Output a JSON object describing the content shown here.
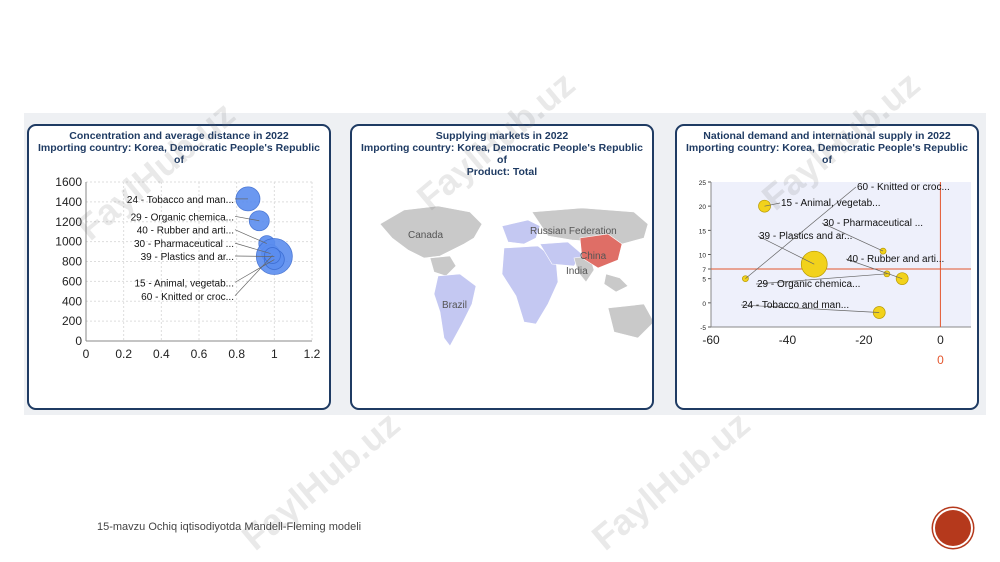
{
  "panels": {
    "concentration": {
      "title_lines": [
        "Concentration and average distance in 2022",
        "Importing country: Korea, Democratic People's Republic",
        "of"
      ],
      "chart_data": {
        "type": "scatter",
        "title": "Concentration and average distance in 2022",
        "xlim": [
          0,
          1.2
        ],
        "ylim": [
          0,
          1600
        ],
        "x_ticks": [
          "0",
          "0.2",
          "0.4",
          "0.6",
          "0.8",
          "1",
          "1.2"
        ],
        "y_ticks": [
          "0",
          "200",
          "400",
          "600",
          "800",
          "1000",
          "1200",
          "1400",
          "1600"
        ],
        "grid": true,
        "bubble_color": "#5b8def",
        "points": [
          {
            "label": "24 - Tobacco and man...",
            "x": 0.86,
            "y": 1430,
            "r": 12
          },
          {
            "label": "29 - Organic chemica...",
            "x": 0.92,
            "y": 1210,
            "r": 10
          },
          {
            "label": "40 - Rubber and arti...",
            "x": 0.96,
            "y": 980,
            "r": 8
          },
          {
            "label": "30 - Pharmaceutical ...",
            "x": 0.98,
            "y": 880,
            "r": 9
          },
          {
            "label": "39 - Plastics and ar...",
            "x": 1.0,
            "y": 850,
            "r": 18
          },
          {
            "label": "15 - Animal, vegetab...",
            "x": 1.0,
            "y": 820,
            "r": 10
          },
          {
            "label": "60 - Knitted or croc...",
            "x": 0.99,
            "y": 860,
            "r": 8
          }
        ],
        "label_y": [
          1430,
          1255,
          1120,
          985,
          855,
          590,
          455
        ]
      }
    },
    "markets": {
      "title_lines": [
        "Supplying markets in 2022",
        "Importing country: Korea, Democratic People's Republic",
        "of",
        "Product: Total"
      ],
      "map_labels": {
        "canada": "Canada",
        "russia": "Russian Federation",
        "china": "China",
        "india": "India",
        "brazil": "Brazil"
      },
      "colors": {
        "land": "#c9c9c9",
        "supplier": "#c4c8f2",
        "china": "#df6e66"
      }
    },
    "demand": {
      "title_lines": [
        "National demand and international supply in 2022",
        "Importing country: Korea, Democratic People's Republic",
        "of"
      ],
      "chart_data": {
        "type": "scatter",
        "title": "National demand and international supply in 2022",
        "xlim": [
          -60,
          8
        ],
        "ylim": [
          -5,
          25
        ],
        "x_ticks": [
          "-60",
          "-40",
          "-20",
          "0"
        ],
        "y_ticks": [
          "-5",
          "0",
          "5",
          "7",
          "10",
          "15",
          "20",
          "25"
        ],
        "reference_lines": {
          "x": 0,
          "y": 7,
          "color": "#e3562e"
        },
        "x_reference_label": "0",
        "bubble_color": "#f2d21b",
        "points": [
          {
            "label": "60 - Knitted or croc...",
            "x": -51,
            "y": 5,
            "r": 3
          },
          {
            "label": "15 - Animal, vegetab...",
            "x": -46,
            "y": 20,
            "r": 6
          },
          {
            "label": "30 - Pharmaceutical ...",
            "x": -15,
            "y": 10.7,
            "r": 3
          },
          {
            "label": "39 - Plastics and ar...",
            "x": -33,
            "y": 8,
            "r": 13
          },
          {
            "label": "40 - Rubber and arti...",
            "x": -10,
            "y": 5,
            "r": 6
          },
          {
            "label": "29 - Organic chemica...",
            "x": -14,
            "y": 6,
            "r": 3
          },
          {
            "label": "24 - Tobacco and man...",
            "x": -16,
            "y": -2,
            "r": 6
          }
        ]
      }
    }
  },
  "footer": {
    "text": "15-mavzu Ochiq iqtisodiyotda Mandell-Fleming modeli"
  },
  "watermark": {
    "text": "FaylHub.uz"
  }
}
